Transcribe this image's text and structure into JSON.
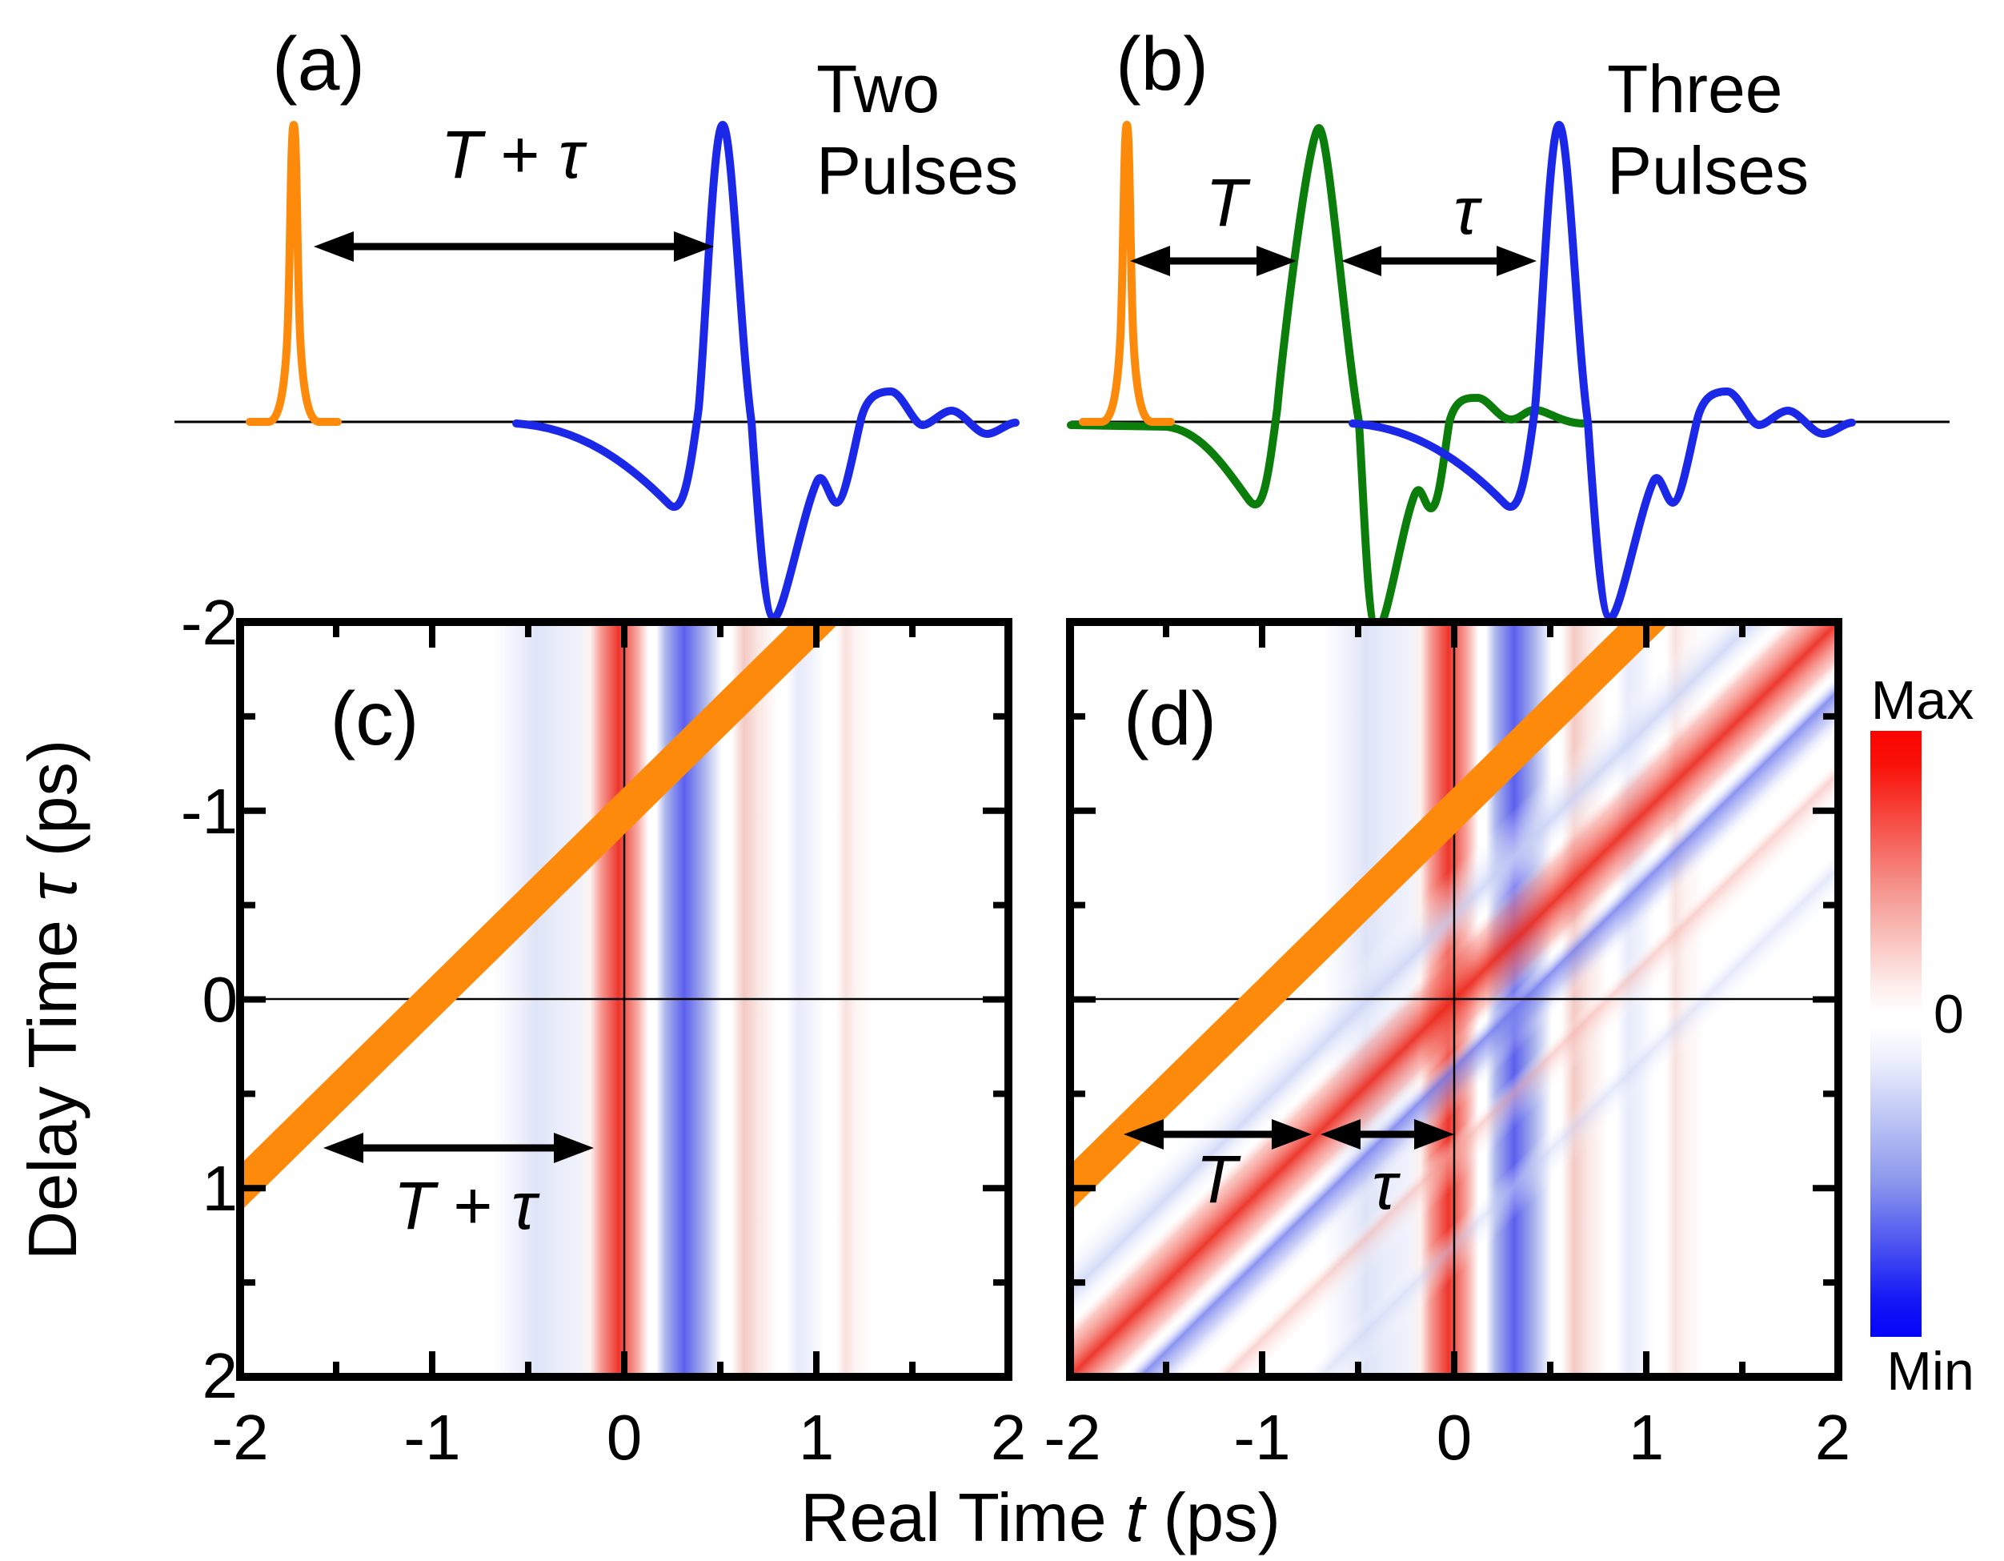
{
  "figure": {
    "panel_a": {
      "tag": "(a)",
      "title_line1": "Two",
      "title_line2": "Pulses",
      "delay_T": "T",
      "delay_plus": " + ",
      "delay_tau": "τ"
    },
    "panel_b": {
      "tag": "(b)",
      "title_line1": "Three",
      "title_line2": "Pulses",
      "delay_T": "T",
      "delay_tau": "τ"
    },
    "panel_c": {
      "tag": "(c)",
      "delay_T": "T",
      "delay_plus": " + ",
      "delay_tau": "τ"
    },
    "panel_d": {
      "tag": "(d)",
      "delay_T": "T",
      "delay_tau": "τ"
    },
    "x_axis": {
      "title_text": "Real Time ",
      "title_var": "t",
      "title_unit": " (ps)",
      "ticks": [
        "-2",
        "-1",
        "0",
        "1",
        "2"
      ]
    },
    "y_axis": {
      "title_text": "Delay Time ",
      "title_var": "τ",
      "title_unit": " (ps)",
      "ticks": [
        "-2",
        "-1",
        "0",
        "1",
        "2"
      ]
    },
    "colorbar": {
      "max_label": "Max",
      "zero_label": "0",
      "min_label": "Min"
    }
  },
  "chart_data": [
    {
      "type": "line",
      "panel": "a",
      "title": "Two Pulses",
      "description": "Schematic pulse sequence: narrow orange gate pulse, then single-cycle blue THz pulse arriving a delay T + τ later",
      "series": [
        {
          "name": "gate pulse",
          "color": "#FE8A0B",
          "peak_position": "0",
          "shape": "narrow spike"
        },
        {
          "name": "THz pulse",
          "color": "#1B28E8",
          "peak_position": "T + τ",
          "shape": "single-cycle: shallow negative lobe, tall positive peak, deep negative lobe, damped positive ringing"
        }
      ],
      "delay_label": "T + τ"
    },
    {
      "type": "line",
      "panel": "b",
      "title": "Three Pulses",
      "series": [
        {
          "name": "gate pulse",
          "color": "#FE8A0B",
          "peak_position": "0",
          "shape": "narrow spike"
        },
        {
          "name": "pump THz pulse",
          "color": "#0A7D0A",
          "peak_position": "T",
          "shape": "single-cycle THz waveform"
        },
        {
          "name": "probe THz pulse",
          "color": "#1B28E8",
          "peak_position": "T + τ",
          "shape": "single-cycle THz waveform"
        }
      ],
      "delay_labels": [
        "T",
        "τ"
      ]
    },
    {
      "type": "heatmap",
      "panel": "c",
      "xlabel": "Real Time t (ps)",
      "ylabel": "Delay Time τ (ps)",
      "xlim": [
        -2,
        2
      ],
      "ylim_top_to_bottom": [
        -2,
        2
      ],
      "grid": false,
      "gate_line": {
        "color": "#FE8A0B",
        "equation": "t = -τ - 1"
      },
      "vertical_bands_t_centers": [
        {
          "t": -0.45,
          "value": "weak negative"
        },
        {
          "t": 0.0,
          "value": "strong positive"
        },
        {
          "t": 0.3,
          "value": "strong negative"
        },
        {
          "t": 0.57,
          "value": "weak positive"
        },
        {
          "t": 0.9,
          "value": "very weak negative"
        },
        {
          "t": 1.15,
          "value": "very weak positive"
        }
      ],
      "annotation": {
        "text": "T + τ",
        "arrow_tau": 0.78,
        "arrow_t_from": -1.57,
        "arrow_t_to": -0.16
      }
    },
    {
      "type": "heatmap",
      "panel": "d",
      "xlabel": "Real Time t (ps)",
      "ylabel": "Delay Time τ (ps)",
      "xlim": [
        -2,
        2
      ],
      "ylim_top_to_bottom": [
        -2,
        2
      ],
      "grid": false,
      "gate_line": {
        "color": "#FE8A0B",
        "equation": "t = -τ - 1"
      },
      "vertical_bands_t_centers": [
        {
          "t": -0.45,
          "value": "weak negative"
        },
        {
          "t": 0.0,
          "value": "strong positive"
        },
        {
          "t": 0.3,
          "value": "strong negative"
        },
        {
          "t": 0.57,
          "value": "weak positive"
        },
        {
          "t": 0.9,
          "value": "very weak negative"
        },
        {
          "t": 1.15,
          "value": "very weak positive"
        }
      ],
      "diagonal_bands_t_plus_tau": [
        {
          "c": -0.45,
          "value": "weak negative"
        },
        {
          "c": 0.0,
          "value": "strong positive"
        },
        {
          "c": 0.35,
          "value": "negative"
        },
        {
          "c": 0.8,
          "value": "weak positive"
        },
        {
          "c": 1.3,
          "value": "very weak negative"
        }
      ],
      "annotations": [
        {
          "text": "T",
          "arrow_tau": 0.72,
          "arrow_t_from": -1.72,
          "arrow_t_to": -0.74
        },
        {
          "text": "τ",
          "arrow_tau": 0.72,
          "arrow_t_from": -0.7,
          "arrow_t_to": 0.0
        }
      ]
    },
    {
      "type": "colorbar",
      "labels_top_to_bottom": [
        "Max",
        "0",
        "Min"
      ],
      "colors_top_to_bottom": [
        "#FB0400",
        "#FFFFFF",
        "#0403FA"
      ]
    }
  ]
}
